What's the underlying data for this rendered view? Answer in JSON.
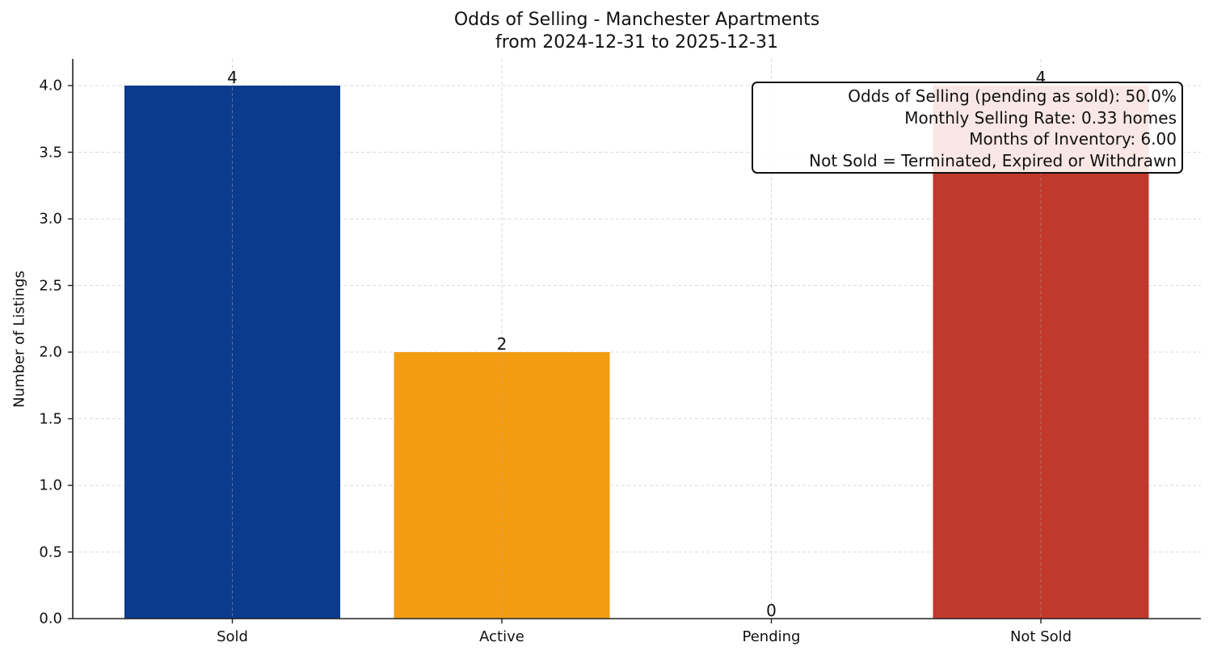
{
  "chart_data": {
    "type": "bar",
    "title": "Odds of Selling - Manchester Apartments",
    "subtitle": "from 2024-12-31 to 2025-12-31",
    "xlabel": "",
    "ylabel": "Number of Listings",
    "categories": [
      "Sold",
      "Active",
      "Pending",
      "Not Sold"
    ],
    "values": [
      4,
      2,
      0,
      4
    ],
    "colors": [
      "#0b3b8c",
      "#f39c12",
      "#27ae60",
      "#c0392b"
    ],
    "data_labels": [
      "4",
      "2",
      "0",
      "4"
    ],
    "ylim": [
      0,
      4.2
    ],
    "yticks": [
      0.0,
      0.5,
      1.0,
      1.5,
      2.0,
      2.5,
      3.0,
      3.5,
      4.0
    ],
    "ytick_labels": [
      "0.0",
      "0.5",
      "1.0",
      "1.5",
      "2.0",
      "2.5",
      "3.0",
      "3.5",
      "4.0"
    ],
    "grid": true,
    "grid_style": "dashed",
    "annotation_box": {
      "position": "upper right",
      "lines": [
        "Odds of Selling (pending as sold): 50.0%",
        "Monthly Selling Rate: 0.33 homes",
        "Months of Inventory: 6.00",
        "Not Sold = Terminated, Expired or Withdrawn"
      ]
    }
  }
}
